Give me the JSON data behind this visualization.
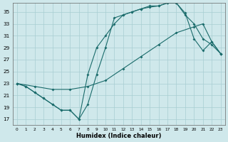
{
  "xlabel": "Humidex (Indice chaleur)",
  "xlim": [
    -0.5,
    23.5
  ],
  "ylim": [
    16.0,
    36.5
  ],
  "yticks": [
    17,
    19,
    21,
    23,
    25,
    27,
    29,
    31,
    33,
    35
  ],
  "xticks": [
    0,
    1,
    2,
    3,
    4,
    5,
    6,
    7,
    8,
    9,
    10,
    11,
    12,
    13,
    14,
    15,
    16,
    17,
    18,
    19,
    20,
    21,
    22,
    23
  ],
  "bg": "#cfe8eb",
  "grid_color": "#a8cdd2",
  "lc": "#1a6b6b",
  "line1_x": [
    0,
    1,
    2,
    3,
    4,
    5,
    6,
    7,
    8,
    9,
    10,
    11,
    12,
    13,
    14,
    15,
    16,
    17,
    18,
    19,
    20,
    21,
    22,
    23
  ],
  "line1_y": [
    23,
    22.5,
    21.5,
    20.5,
    19.5,
    18.5,
    18.5,
    17.0,
    24.5,
    29.0,
    31.0,
    33.0,
    34.5,
    35.0,
    35.5,
    35.8,
    36.0,
    36.5,
    36.5,
    34.8,
    30.5,
    28.5,
    30.0,
    28.0
  ],
  "line2_x": [
    0,
    1,
    2,
    3,
    4,
    5,
    6,
    7,
    8,
    9,
    10,
    11,
    12,
    13,
    14,
    15,
    16,
    17,
    18,
    19,
    20,
    21,
    22,
    23
  ],
  "line2_y": [
    23,
    22.5,
    21.5,
    20.5,
    19.5,
    18.5,
    18.5,
    17.0,
    19.5,
    24.5,
    29.0,
    34.0,
    34.5,
    35.0,
    35.5,
    36.0,
    36.0,
    36.5,
    36.5,
    34.5,
    33.0,
    30.5,
    29.5,
    28.0
  ],
  "line3_x": [
    0,
    2,
    4,
    6,
    8,
    10,
    12,
    14,
    16,
    18,
    20,
    21,
    22,
    23
  ],
  "line3_y": [
    23,
    22.5,
    22.0,
    22.0,
    22.5,
    23.5,
    25.5,
    27.5,
    29.5,
    31.5,
    32.5,
    33.0,
    30.0,
    28.0
  ]
}
